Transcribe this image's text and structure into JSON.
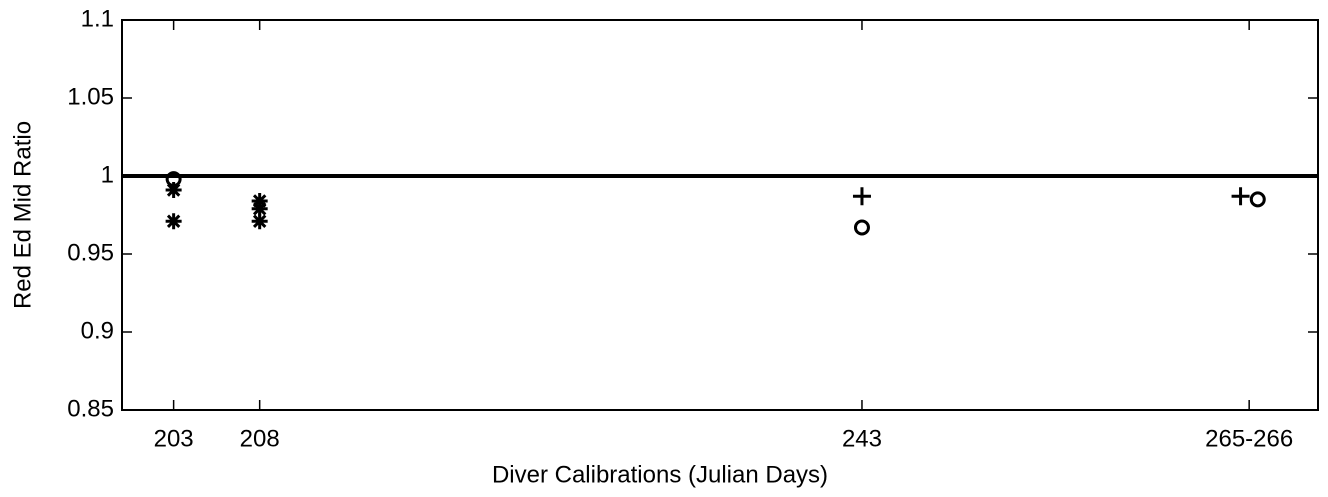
{
  "chart_data": {
    "type": "scatter",
    "xlabel": "Diver Calibrations (Julian Days)",
    "ylabel": "Red Ed Mid Ratio",
    "xlim": [
      200,
      269.5
    ],
    "xticks": [
      203,
      208,
      243,
      {
        "value": 265.5,
        "label": "265-266"
      }
    ],
    "ylim": [
      0.85,
      1.1
    ],
    "yticks": [
      0.85,
      0.9,
      0.95,
      1,
      1.05,
      1.1
    ],
    "hline": 1,
    "color": "#000000",
    "series": [
      {
        "marker": "star",
        "x": [
          203,
          203,
          208,
          208,
          208
        ],
        "values": [
          0.991,
          0.971,
          0.984,
          0.979,
          0.971
        ]
      },
      {
        "marker": "circle",
        "x": [
          203,
          243,
          266
        ],
        "values": [
          0.998,
          0.967,
          0.985
        ]
      },
      {
        "marker": "plus",
        "x": [
          243,
          265
        ],
        "values": [
          0.987,
          0.987
        ]
      }
    ]
  }
}
